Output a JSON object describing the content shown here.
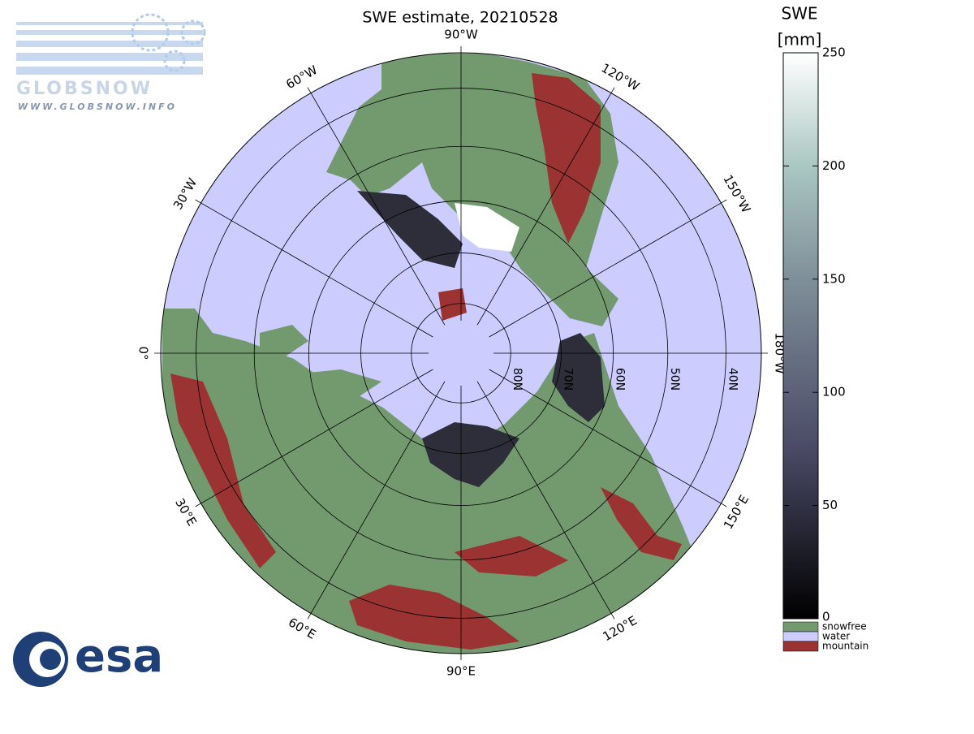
{
  "title": "SWE estimate, 20210528",
  "meridians": [
    {
      "value": -90,
      "label": "90°W"
    },
    {
      "value": -120,
      "label": "120°W"
    },
    {
      "value": -150,
      "label": "150°W"
    },
    {
      "value": -180,
      "label": "180°W"
    },
    {
      "value": 150,
      "label": "150°E"
    },
    {
      "value": 120,
      "label": "120°E"
    },
    {
      "value": 90,
      "label": "90°E"
    },
    {
      "value": 60,
      "label": "60°E"
    },
    {
      "value": 30,
      "label": "30°E"
    },
    {
      "value": 0,
      "label": "0°"
    },
    {
      "value": -30,
      "label": "30°W"
    },
    {
      "value": -60,
      "label": "60°W"
    }
  ],
  "parallels": [
    {
      "value": 80,
      "label": "80N"
    },
    {
      "value": 70,
      "label": "70N"
    },
    {
      "value": 60,
      "label": "60N"
    },
    {
      "value": 50,
      "label": "50N"
    },
    {
      "value": 40,
      "label": "40N"
    }
  ],
  "colorbar": {
    "title": "SWE",
    "unit": "[mm]",
    "lim": [
      0,
      250
    ],
    "ticks": [
      0,
      50,
      100,
      150,
      200,
      250
    ],
    "classes": [
      {
        "label": "snowfree",
        "color": "#739a6f"
      },
      {
        "label": "water",
        "color": "#ccccff"
      },
      {
        "label": "mountain",
        "color": "#9b3333"
      }
    ]
  },
  "logos": {
    "globsnow": "GLOBSNOW",
    "url": "WWW.GLOBSNOW.INFO",
    "esa": "esa"
  }
}
